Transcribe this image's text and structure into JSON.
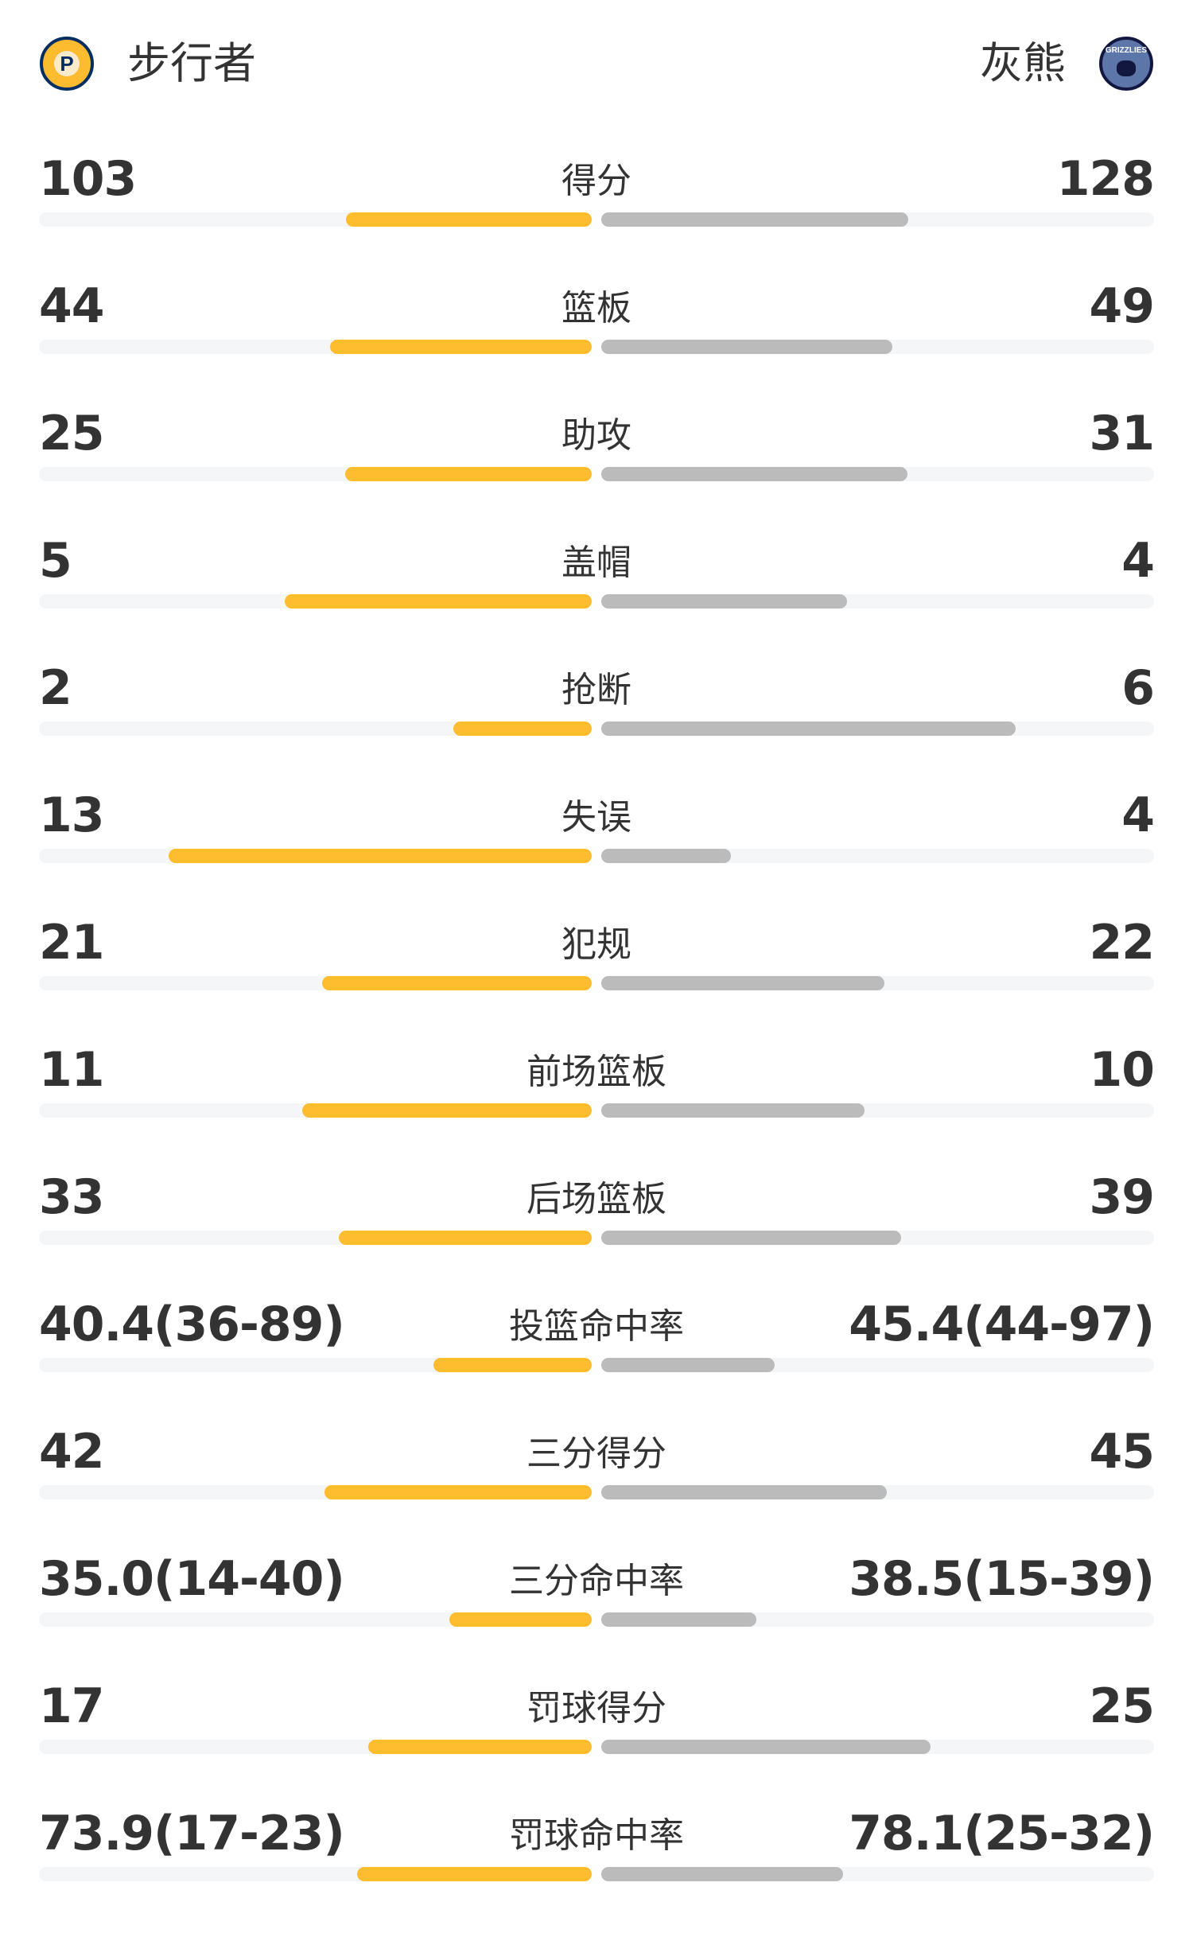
{
  "header": {
    "home": {
      "name": "步行者",
      "logo_icon": "indiana-pacers-logo",
      "logo_text": "P",
      "color": "#fdbb30"
    },
    "away": {
      "name": "灰熊",
      "logo_icon": "memphis-grizzlies-logo",
      "logo_text": "GRIZZLIES",
      "color": "#5d76a9"
    }
  },
  "colors": {
    "home_bar": "#fdbd2f",
    "away_bar": "#bbbbbb",
    "track": "#f5f6f8"
  },
  "stats": [
    {
      "label": "得分",
      "home": "103",
      "away": "128",
      "home_fill": 0.445,
      "away_fill": 0.555
    },
    {
      "label": "篮板",
      "home": "44",
      "away": "49",
      "home_fill": 0.474,
      "away_fill": 0.526
    },
    {
      "label": "助攻",
      "home": "25",
      "away": "31",
      "home_fill": 0.446,
      "away_fill": 0.554
    },
    {
      "label": "盖帽",
      "home": "5",
      "away": "4",
      "home_fill": 0.555,
      "away_fill": 0.445
    },
    {
      "label": "抢断",
      "home": "2",
      "away": "6",
      "home_fill": 0.25,
      "away_fill": 0.75
    },
    {
      "label": "失误",
      "home": "13",
      "away": "4",
      "home_fill": 0.765,
      "away_fill": 0.235
    },
    {
      "label": "犯规",
      "home": "21",
      "away": "22",
      "home_fill": 0.488,
      "away_fill": 0.512
    },
    {
      "label": "前场篮板",
      "home": "11",
      "away": "10",
      "home_fill": 0.524,
      "away_fill": 0.476
    },
    {
      "label": "后场篮板",
      "home": "33",
      "away": "39",
      "home_fill": 0.458,
      "away_fill": 0.542
    },
    {
      "label": "投篮命中率",
      "home": "40.4(36-89)",
      "away": "45.4(44-97)",
      "home_fill": 0.286,
      "away_fill": 0.313
    },
    {
      "label": "三分得分",
      "home": "42",
      "away": "45",
      "home_fill": 0.483,
      "away_fill": 0.517
    },
    {
      "label": "三分命中率",
      "home": "35.0(14-40)",
      "away": "38.5(15-39)",
      "home_fill": 0.258,
      "away_fill": 0.28
    },
    {
      "label": "罚球得分",
      "home": "17",
      "away": "25",
      "home_fill": 0.405,
      "away_fill": 0.595
    },
    {
      "label": "罚球命中率",
      "home": "73.9(17-23)",
      "away": "78.1(25-32)",
      "home_fill": 0.425,
      "away_fill": 0.438
    }
  ]
}
